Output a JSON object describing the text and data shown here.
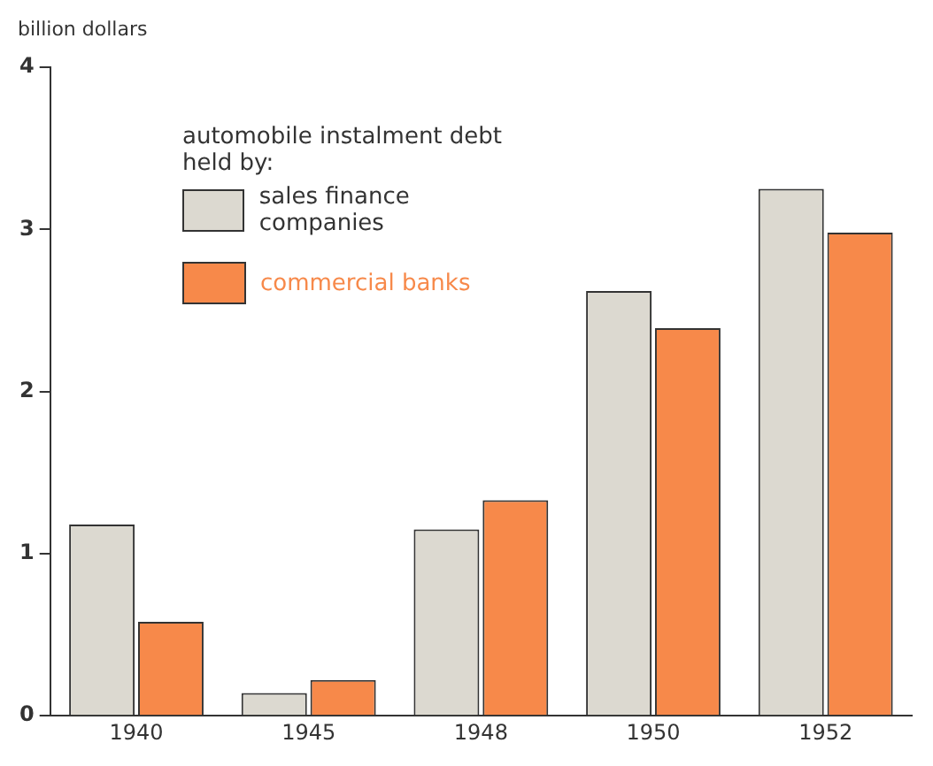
{
  "chart_data": {
    "type": "bar",
    "ylabel": "billion dollars",
    "legend_title": "automobile instalment debt held by:",
    "categories": [
      "1940",
      "1945",
      "1948",
      "1950",
      "1952"
    ],
    "series": [
      {
        "name": "sales finance companies",
        "color": "#dcd9d0",
        "values": [
          1.18,
          0.14,
          1.15,
          2.62,
          3.25
        ]
      },
      {
        "name": "commercial banks",
        "color": "#f7894a",
        "values": [
          0.58,
          0.22,
          1.33,
          2.39,
          2.98
        ]
      }
    ],
    "ylim": [
      0,
      4
    ],
    "yticks": [
      0,
      1,
      2,
      3,
      4
    ],
    "grid": false,
    "legend": "top left"
  }
}
